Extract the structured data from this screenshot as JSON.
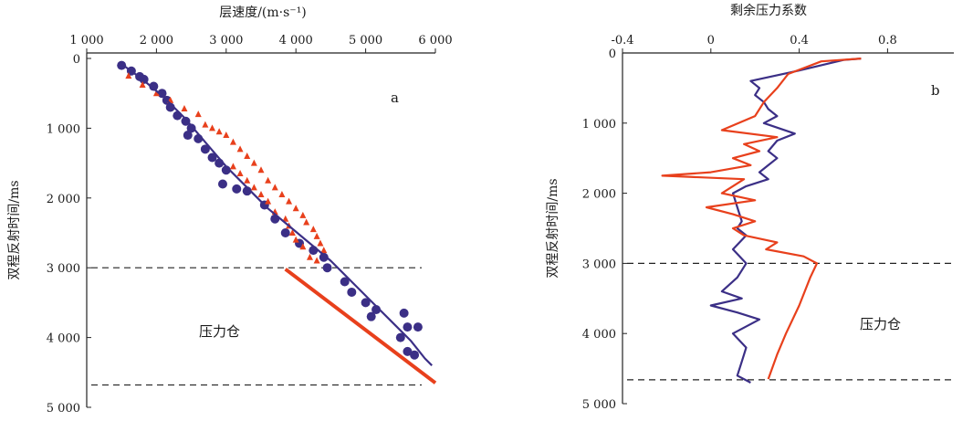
{
  "chart_data": [
    {
      "type": "scatter",
      "panel_label": "a",
      "title": "层速度/(m·s⁻¹)",
      "xlabel": "层速度/(m·s⁻¹)",
      "ylabel": "双程反射时间/ms",
      "xlim": [
        1000,
        6000
      ],
      "ylim": [
        0,
        5000
      ],
      "x_ticks": [
        "1 000",
        "2 000",
        "3 000",
        "4 000",
        "5 000",
        "6 000"
      ],
      "y_ticks": [
        "0",
        "1 000",
        "2 000",
        "3 000",
        "4 000",
        "5 000"
      ],
      "annotation": "压力仓",
      "colors": {
        "blue": "#3b2f86",
        "red": "#e8401c"
      },
      "reference_lines": [
        3000,
        4680
      ],
      "series": [
        {
          "color": "blue",
          "kind": "points",
          "points": [
            [
              1500,
              100
            ],
            [
              1640,
              180
            ],
            [
              1760,
              260
            ],
            [
              1820,
              300
            ],
            [
              1960,
              400
            ],
            [
              2080,
              500
            ],
            [
              2150,
              600
            ],
            [
              2200,
              700
            ],
            [
              2300,
              820
            ],
            [
              2420,
              900
            ],
            [
              2500,
              1000
            ],
            [
              2450,
              1100
            ],
            [
              2600,
              1150
            ],
            [
              2700,
              1300
            ],
            [
              2800,
              1420
            ],
            [
              2900,
              1500
            ],
            [
              3000,
              1600
            ],
            [
              2950,
              1800
            ],
            [
              3150,
              1870
            ],
            [
              3300,
              1900
            ],
            [
              3550,
              2100
            ],
            [
              3700,
              2300
            ],
            [
              3850,
              2500
            ],
            [
              4050,
              2650
            ],
            [
              4250,
              2750
            ],
            [
              4400,
              2850
            ],
            [
              4450,
              3000
            ],
            [
              4700,
              3200
            ],
            [
              4800,
              3350
            ],
            [
              5000,
              3500
            ],
            [
              5150,
              3600
            ],
            [
              5080,
              3700
            ],
            [
              5550,
              3650
            ],
            [
              5600,
              3850
            ],
            [
              5750,
              3850
            ],
            [
              5500,
              4000
            ],
            [
              5600,
              4200
            ],
            [
              5700,
              4250
            ]
          ]
        },
        {
          "color": "red",
          "kind": "points",
          "points": [
            [
              1600,
              250
            ],
            [
              1800,
              380
            ],
            [
              2000,
              500
            ],
            [
              2200,
              600
            ],
            [
              2400,
              720
            ],
            [
              2600,
              800
            ],
            [
              2700,
              950
            ],
            [
              2800,
              1000
            ],
            [
              2900,
              1050
            ],
            [
              3000,
              1100
            ],
            [
              3100,
              1200
            ],
            [
              3200,
              1300
            ],
            [
              3300,
              1400
            ],
            [
              3400,
              1500
            ],
            [
              3500,
              1600
            ],
            [
              3600,
              1750
            ],
            [
              3700,
              1850
            ],
            [
              3800,
              1950
            ],
            [
              3900,
              2050
            ],
            [
              4000,
              2150
            ],
            [
              4100,
              2250
            ],
            [
              4150,
              2350
            ],
            [
              4250,
              2450
            ],
            [
              4300,
              2550
            ],
            [
              4350,
              2650
            ],
            [
              4400,
              2750
            ],
            [
              4300,
              2900
            ],
            [
              4200,
              2850
            ],
            [
              4100,
              2700
            ],
            [
              4000,
              2600
            ],
            [
              3950,
              2500
            ],
            [
              3900,
              2400
            ],
            [
              3850,
              2300
            ],
            [
              3700,
              2200
            ],
            [
              3600,
              2050
            ],
            [
              3500,
              1950
            ],
            [
              3400,
              1850
            ],
            [
              3300,
              1750
            ],
            [
              3200,
              1650
            ],
            [
              3100,
              1550
            ]
          ]
        },
        {
          "color": "blue",
          "kind": "line",
          "points": [
            [
              1500,
              80
            ],
            [
              1800,
              300
            ],
            [
              2100,
              550
            ],
            [
              2400,
              850
            ],
            [
              2700,
              1200
            ],
            [
              3000,
              1550
            ],
            [
              3300,
              1850
            ],
            [
              3600,
              2150
            ],
            [
              3900,
              2400
            ],
            [
              4200,
              2650
            ],
            [
              4500,
              2900
            ],
            [
              4800,
              3200
            ],
            [
              5100,
              3500
            ],
            [
              5400,
              3800
            ],
            [
              5650,
              4050
            ],
            [
              5850,
              4300
            ],
            [
              5950,
              4400
            ]
          ]
        },
        {
          "color": "red",
          "kind": "line",
          "points": [
            [
              3850,
              3020
            ],
            [
              6000,
              4650
            ]
          ]
        }
      ]
    },
    {
      "type": "line",
      "panel_label": "b",
      "title": "剩余压力系数",
      "xlabel": "剩余压力系数",
      "ylabel": "双程反射时间/ms",
      "xlim": [
        -0.4,
        1.1
      ],
      "ylim": [
        0,
        5000
      ],
      "x_ticks": [
        "-0.4",
        "0",
        "0.4",
        "0.8"
      ],
      "y_ticks": [
        "0",
        "1 000",
        "2 000",
        "3 000",
        "4 000",
        "5 000"
      ],
      "annotation": "压力仓",
      "colors": {
        "blue": "#3b2f86",
        "red": "#e8401c"
      },
      "reference_lines": [
        3000,
        4660
      ],
      "series": [
        {
          "color": "blue",
          "points": [
            [
              0.68,
              80
            ],
            [
              0.6,
              100
            ],
            [
              0.4,
              250
            ],
            [
              0.18,
              400
            ],
            [
              0.22,
              500
            ],
            [
              0.2,
              600
            ],
            [
              0.24,
              700
            ],
            [
              0.26,
              800
            ],
            [
              0.3,
              900
            ],
            [
              0.24,
              1000
            ],
            [
              0.38,
              1150
            ],
            [
              0.3,
              1250
            ],
            [
              0.26,
              1400
            ],
            [
              0.3,
              1500
            ],
            [
              0.26,
              1600
            ],
            [
              0.22,
              1700
            ],
            [
              0.26,
              1800
            ],
            [
              0.16,
              1900
            ],
            [
              0.1,
              2000
            ],
            [
              0.12,
              2200
            ],
            [
              0.14,
              2400
            ],
            [
              0.12,
              2500
            ],
            [
              0.16,
              2600
            ],
            [
              0.1,
              2800
            ],
            [
              0.16,
              3000
            ],
            [
              0.12,
              3200
            ],
            [
              0.05,
              3400
            ],
            [
              0.14,
              3500
            ],
            [
              0.0,
              3600
            ],
            [
              0.12,
              3700
            ],
            [
              0.22,
              3800
            ],
            [
              0.1,
              4000
            ],
            [
              0.16,
              4200
            ],
            [
              0.14,
              4400
            ],
            [
              0.12,
              4600
            ],
            [
              0.18,
              4700
            ]
          ]
        },
        {
          "color": "red",
          "points": [
            [
              0.68,
              80
            ],
            [
              0.5,
              120
            ],
            [
              0.35,
              300
            ],
            [
              0.3,
              500
            ],
            [
              0.24,
              700
            ],
            [
              0.2,
              900
            ],
            [
              0.05,
              1100
            ],
            [
              0.3,
              1200
            ],
            [
              0.15,
              1300
            ],
            [
              0.22,
              1400
            ],
            [
              0.1,
              1500
            ],
            [
              0.18,
              1600
            ],
            [
              0.0,
              1700
            ],
            [
              -0.22,
              1750
            ],
            [
              0.15,
              1800
            ],
            [
              0.05,
              2000
            ],
            [
              0.2,
              2100
            ],
            [
              -0.02,
              2200
            ],
            [
              0.1,
              2300
            ],
            [
              0.2,
              2400
            ],
            [
              0.1,
              2500
            ],
            [
              0.15,
              2600
            ],
            [
              0.3,
              2700
            ],
            [
              0.25,
              2800
            ],
            [
              0.42,
              2900
            ],
            [
              0.48,
              3000
            ],
            [
              0.45,
              3200
            ],
            [
              0.4,
              3600
            ],
            [
              0.34,
              4000
            ],
            [
              0.3,
              4300
            ],
            [
              0.26,
              4650
            ]
          ]
        }
      ]
    }
  ]
}
